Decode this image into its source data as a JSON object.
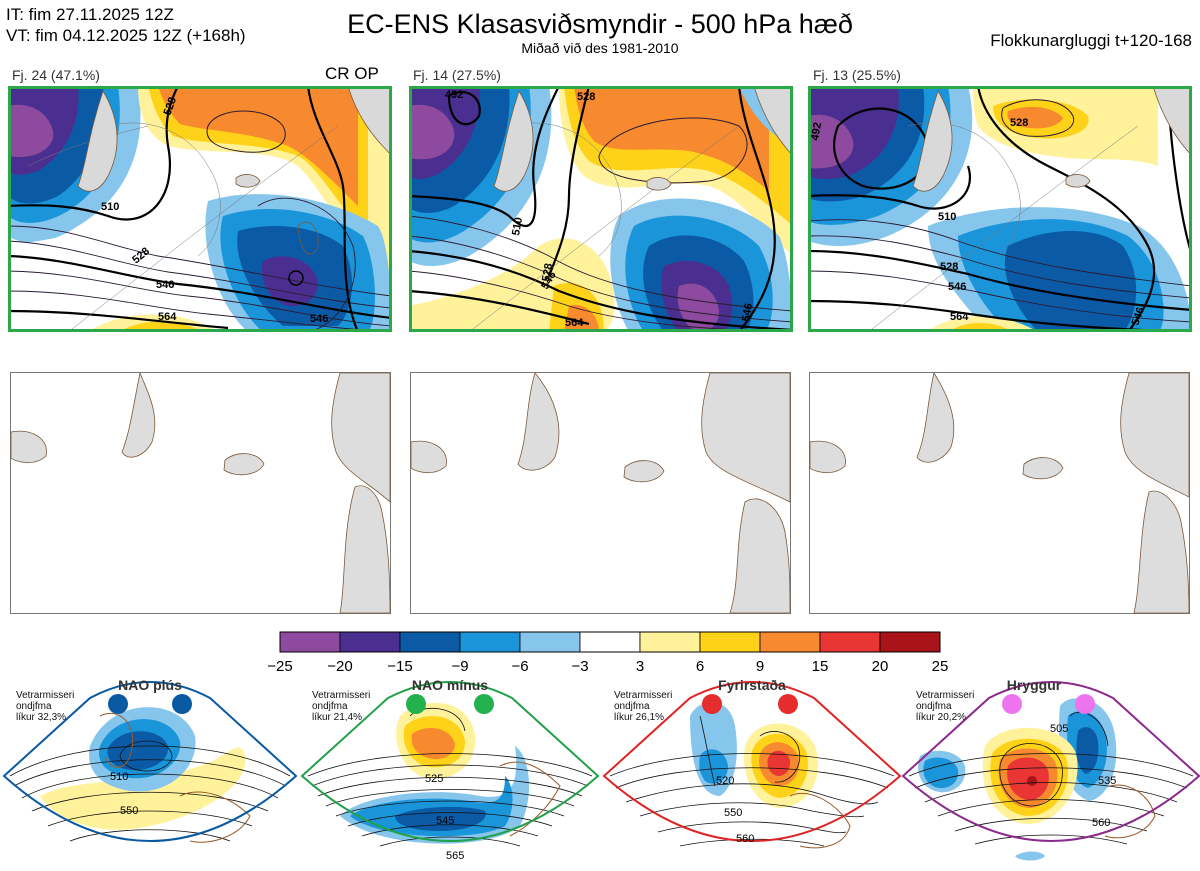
{
  "header": {
    "it_line": "IT: fim 27.11.2025 12Z",
    "vt_line": "VT: fim 04.12.2025 12Z  (+168h)",
    "title": "EC-ENS Klasasviðsmyndir - 500 hPa hæð",
    "subtitle": "Miðað við des 1981-2010",
    "window": "Flokkunargluggi t+120-168"
  },
  "clusters": [
    {
      "label": "Fj. 24 (47.1%)",
      "badge": "CR OP",
      "contours": [
        "510",
        "528",
        "546",
        "564",
        "546",
        "528"
      ]
    },
    {
      "label": "Fj. 14 (27.5%)",
      "badge": "",
      "contours": [
        "492",
        "510",
        "528",
        "546",
        "564",
        "546",
        "528"
      ]
    },
    {
      "label": "Fj. 13 (25.5%)",
      "badge": "",
      "contours": [
        "492",
        "510",
        "528",
        "546",
        "564",
        "546",
        "528"
      ]
    }
  ],
  "colorbar": {
    "ticks": [
      "−25",
      "−20",
      "−15",
      "−9",
      "−6",
      "−3",
      "3",
      "6",
      "9",
      "15",
      "20",
      "25"
    ],
    "colors": [
      "#8e4a9e",
      "#4a2f91",
      "#0b5aa6",
      "#1b95d9",
      "#86c6ec",
      "#ffffff",
      "#fff29a",
      "#ffd21a",
      "#f7892f",
      "#ea3535",
      "#a8141a"
    ]
  },
  "regimes": [
    {
      "name": "NAO plús",
      "note_l1": "Vetrarmisseri",
      "note_l2": "ondjfma",
      "note_l3": "líkur 32,3%",
      "color": "#0a5aa3",
      "dot": "#0a5aa3",
      "labels": [
        "510",
        "550"
      ]
    },
    {
      "name": "NAO mínus",
      "note_l1": "Vetrarmisseri",
      "note_l2": "ondjfma",
      "note_l3": "líkur 21,4%",
      "color": "#22a04a",
      "dot": "#22b14c",
      "labels": [
        "525",
        "545",
        "565"
      ]
    },
    {
      "name": "Fyrirstaða",
      "note_l1": "Vetrarmisseri",
      "note_l2": "ondjfma",
      "note_l3": "líkur 26,1%",
      "color": "#e02424",
      "dot": "#e52d2d",
      "labels": [
        "520",
        "550",
        "560"
      ]
    },
    {
      "name": "Hryggur",
      "note_l1": "Vetrarmisseri",
      "note_l2": "ondjfma",
      "note_l3": "líkur 20,2%",
      "color": "#8a2a8c",
      "dot": "#ee73ee",
      "labels": [
        "505",
        "535",
        "560"
      ]
    }
  ]
}
